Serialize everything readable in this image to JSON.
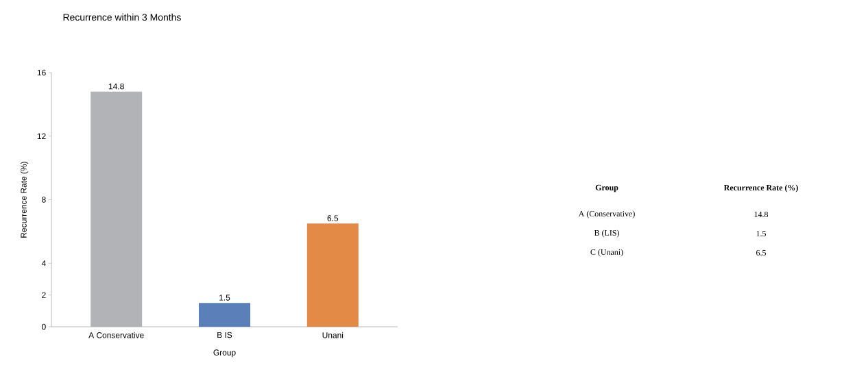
{
  "chart_data": [
    {
      "type": "bar",
      "title": "Recurrence within 3 Months",
      "xlabel": "Group",
      "ylabel": "Recurrence Rate (%)",
      "categories": [
        "A Conservative",
        "B IS",
        "Unani"
      ],
      "values": [
        14.8,
        1.5,
        6.5
      ],
      "colors": [
        "#b1b3b6",
        "#5b80b9",
        "#e38a46"
      ],
      "ylim": [
        0,
        16
      ],
      "yticks": [
        0,
        2,
        4,
        8,
        12,
        16
      ],
      "data_labels": true
    },
    {
      "type": "other",
      "annotations": [
        "Group",
        "Recurrence Rate (%)"
      ],
      "categories": [
        "A (Conservative)",
        "B (LIS)",
        "C (Unani)"
      ],
      "values": [
        14.8,
        1.5,
        6.5
      ],
      "data_labels": true
    }
  ]
}
